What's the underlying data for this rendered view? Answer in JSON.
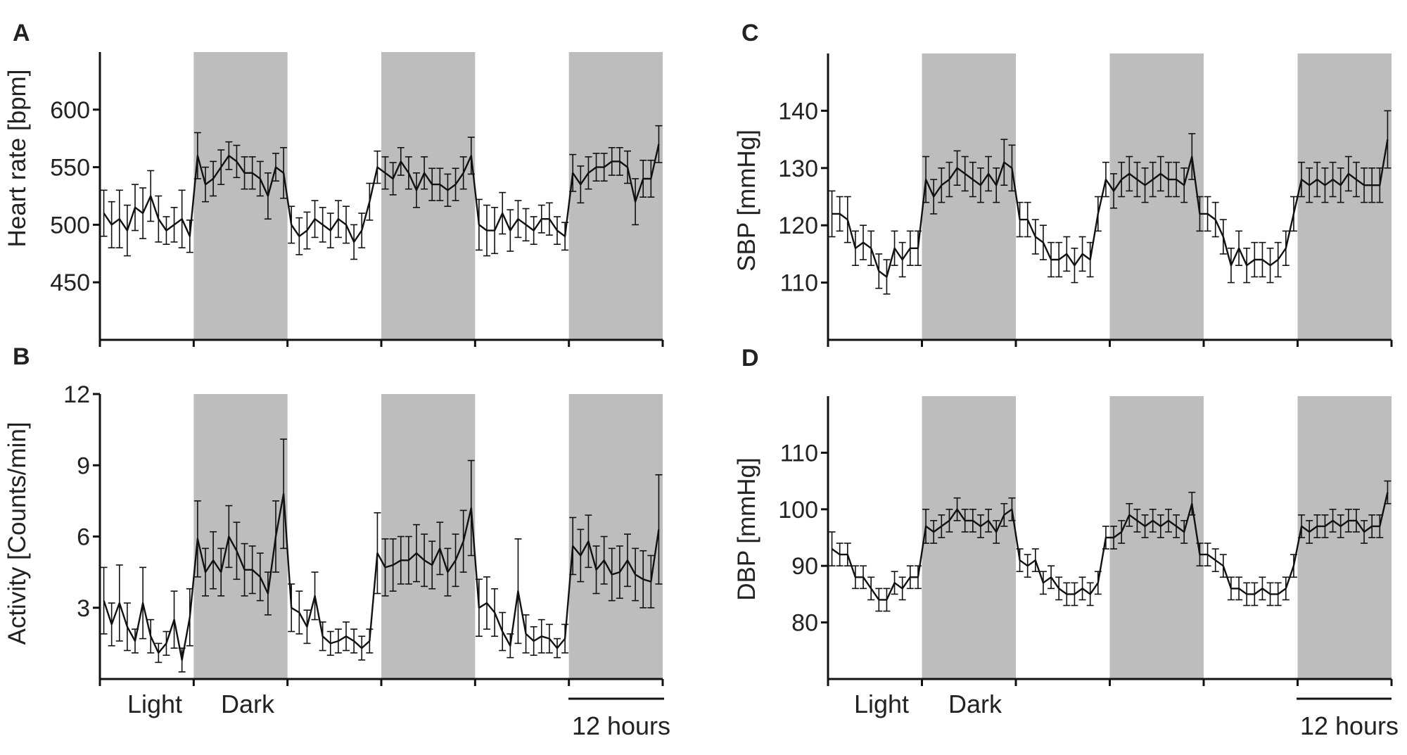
{
  "figure": {
    "colors": {
      "dark_band": "#bdbdbd",
      "line": "#111111",
      "axis": "#111111",
      "text": "#222222"
    },
    "footer_left": {
      "light_label": "Light",
      "dark_label": "Dark",
      "scale_label": "12 hours"
    },
    "footer_right": {
      "light_label": "Light",
      "dark_label": "Dark",
      "scale_label": "12 hours"
    }
  },
  "chart_data": [
    {
      "panel": "A",
      "type": "line",
      "title": "",
      "ylabel": "Heart rate [bpm]",
      "xlabel": "",
      "ylim": [
        400,
        650
      ],
      "yticks": [
        450,
        500,
        550,
        600
      ],
      "xlim": [
        0,
        72
      ],
      "dark_periods": [
        [
          12,
          24
        ],
        [
          36,
          48
        ],
        [
          60,
          72
        ]
      ],
      "series": [
        {
          "name": "Heart rate",
          "x": [
            0.5,
            1.5,
            2.5,
            3.5,
            4.5,
            5.5,
            6.5,
            7.5,
            8.5,
            9.5,
            10.5,
            11.5,
            12.5,
            13.5,
            14.5,
            15.5,
            16.5,
            17.5,
            18.5,
            19.5,
            20.5,
            21.5,
            22.5,
            23.5,
            24.5,
            25.5,
            26.5,
            27.5,
            28.5,
            29.5,
            30.5,
            31.5,
            32.5,
            33.5,
            34.5,
            35.5,
            36.5,
            37.5,
            38.5,
            39.5,
            40.5,
            41.5,
            42.5,
            43.5,
            44.5,
            45.5,
            46.5,
            47.5,
            48.5,
            49.5,
            50.5,
            51.5,
            52.5,
            53.5,
            54.5,
            55.5,
            56.5,
            57.5,
            58.5,
            59.5,
            60.5,
            61.5,
            62.5,
            63.5,
            64.5,
            65.5,
            66.5,
            67.5,
            68.5,
            69.5,
            70.5,
            71.5
          ],
          "values": [
            510,
            500,
            505,
            495,
            515,
            510,
            525,
            505,
            495,
            500,
            505,
            490,
            560,
            535,
            540,
            550,
            560,
            555,
            545,
            545,
            540,
            525,
            550,
            545,
            500,
            490,
            495,
            505,
            500,
            495,
            505,
            500,
            485,
            495,
            520,
            550,
            545,
            540,
            555,
            545,
            530,
            545,
            535,
            535,
            530,
            535,
            545,
            560,
            500,
            495,
            495,
            510,
            495,
            505,
            500,
            495,
            505,
            505,
            495,
            490,
            545,
            535,
            545,
            550,
            550,
            555,
            555,
            550,
            520,
            540,
            540,
            570
          ],
          "errors": [
            20,
            20,
            25,
            22,
            20,
            22,
            22,
            20,
            12,
            15,
            25,
            14,
            20,
            15,
            15,
            15,
            12,
            14,
            14,
            14,
            15,
            20,
            12,
            22,
            16,
            16,
            16,
            16,
            15,
            15,
            16,
            16,
            15,
            15,
            16,
            14,
            14,
            14,
            12,
            14,
            15,
            14,
            14,
            14,
            14,
            14,
            14,
            16,
            22,
            22,
            20,
            18,
            18,
            16,
            14,
            12,
            12,
            14,
            12,
            12,
            16,
            16,
            14,
            12,
            12,
            12,
            12,
            14,
            20,
            16,
            16,
            16
          ]
        }
      ]
    },
    {
      "panel": "B",
      "type": "line",
      "title": "",
      "ylabel": "Activity [Counts/min]",
      "xlabel": "",
      "ylim": [
        0,
        12
      ],
      "yticks": [
        3,
        6,
        9,
        12
      ],
      "xlim": [
        0,
        72
      ],
      "dark_periods": [
        [
          12,
          24
        ],
        [
          36,
          48
        ],
        [
          60,
          72
        ]
      ],
      "series": [
        {
          "name": "Activity",
          "x": [
            0.5,
            1.5,
            2.5,
            3.5,
            4.5,
            5.5,
            6.5,
            7.5,
            8.5,
            9.5,
            10.5,
            11.5,
            12.5,
            13.5,
            14.5,
            15.5,
            16.5,
            17.5,
            18.5,
            19.5,
            20.5,
            21.5,
            22.5,
            23.5,
            24.5,
            25.5,
            26.5,
            27.5,
            28.5,
            29.5,
            30.5,
            31.5,
            32.5,
            33.5,
            34.5,
            35.5,
            36.5,
            37.5,
            38.5,
            39.5,
            40.5,
            41.5,
            42.5,
            43.5,
            44.5,
            45.5,
            46.5,
            47.5,
            48.5,
            49.5,
            50.5,
            51.5,
            52.5,
            53.5,
            54.5,
            55.5,
            56.5,
            57.5,
            58.5,
            59.5,
            60.5,
            61.5,
            62.5,
            63.5,
            64.5,
            65.5,
            66.5,
            67.5,
            68.5,
            69.5,
            70.5,
            71.5
          ],
          "values": [
            3.3,
            2.3,
            3.2,
            2.2,
            1.6,
            3.2,
            1.8,
            1.1,
            1.5,
            2.5,
            0.8,
            2.6,
            5.9,
            4.5,
            5.0,
            4.5,
            6.0,
            5.4,
            4.6,
            4.6,
            4.3,
            3.6,
            6.0,
            7.8,
            3.0,
            2.8,
            2.2,
            3.5,
            1.8,
            1.5,
            1.6,
            1.8,
            1.6,
            1.3,
            1.6,
            5.3,
            4.7,
            4.8,
            5.0,
            5.0,
            5.3,
            5.0,
            4.8,
            5.5,
            4.5,
            5.0,
            5.8,
            7.2,
            3.0,
            3.2,
            2.8,
            2.0,
            1.4,
            3.7,
            1.9,
            1.6,
            1.8,
            1.7,
            1.3,
            1.7,
            5.6,
            5.2,
            5.8,
            4.6,
            5.0,
            4.4,
            4.5,
            5.0,
            4.4,
            4.2,
            4.1,
            6.3
          ],
          "errors": [
            1.4,
            0.9,
            1.6,
            1.0,
            0.5,
            1.5,
            0.7,
            0.4,
            0.5,
            1.2,
            0.5,
            1.2,
            1.6,
            1.0,
            1.2,
            1.0,
            1.3,
            1.2,
            1.1,
            1.0,
            1.0,
            0.9,
            1.5,
            2.3,
            1.0,
            0.9,
            0.7,
            1.0,
            0.6,
            0.5,
            0.5,
            0.6,
            0.5,
            0.5,
            0.5,
            1.7,
            1.2,
            1.1,
            1.0,
            1.0,
            1.2,
            1.1,
            1.0,
            1.1,
            1.0,
            1.1,
            1.3,
            2.0,
            1.2,
            1.1,
            1.0,
            0.8,
            0.5,
            2.2,
            0.8,
            0.6,
            0.7,
            0.6,
            0.4,
            0.6,
            1.2,
            1.1,
            1.1,
            1.0,
            1.0,
            1.1,
            1.1,
            1.1,
            1.1,
            1.2,
            1.1,
            2.3
          ]
        }
      ]
    },
    {
      "panel": "C",
      "type": "line",
      "title": "",
      "ylabel": "SBP [mmHg]",
      "xlabel": "",
      "ylim": [
        100,
        150
      ],
      "yticks": [
        110,
        120,
        130,
        140
      ],
      "xlim": [
        0,
        72
      ],
      "dark_periods": [
        [
          12,
          24
        ],
        [
          36,
          48
        ],
        [
          60,
          72
        ]
      ],
      "series": [
        {
          "name": "SBP",
          "x": [
            0.5,
            1.5,
            2.5,
            3.5,
            4.5,
            5.5,
            6.5,
            7.5,
            8.5,
            9.5,
            10.5,
            11.5,
            12.5,
            13.5,
            14.5,
            15.5,
            16.5,
            17.5,
            18.5,
            19.5,
            20.5,
            21.5,
            22.5,
            23.5,
            24.5,
            25.5,
            26.5,
            27.5,
            28.5,
            29.5,
            30.5,
            31.5,
            32.5,
            33.5,
            34.5,
            35.5,
            36.5,
            37.5,
            38.5,
            39.5,
            40.5,
            41.5,
            42.5,
            43.5,
            44.5,
            45.5,
            46.5,
            47.5,
            48.5,
            49.5,
            50.5,
            51.5,
            52.5,
            53.5,
            54.5,
            55.5,
            56.5,
            57.5,
            58.5,
            59.5,
            60.5,
            61.5,
            62.5,
            63.5,
            64.5,
            65.5,
            66.5,
            67.5,
            68.5,
            69.5,
            70.5,
            71.5
          ],
          "values": [
            122,
            122,
            121,
            116,
            117,
            116,
            112,
            111,
            116,
            114,
            116,
            116,
            128,
            125,
            127,
            128,
            130,
            129,
            128,
            127,
            129,
            127,
            131,
            130,
            121,
            121,
            118,
            117,
            114,
            114,
            115,
            113,
            115,
            114,
            122,
            128,
            126,
            128,
            129,
            128,
            127,
            128,
            129,
            128,
            128,
            127,
            132,
            122,
            122,
            121,
            118,
            113,
            116,
            113,
            114,
            114,
            113,
            114,
            116,
            122,
            128,
            127,
            128,
            127,
            128,
            127,
            129,
            128,
            127,
            127,
            127,
            135
          ],
          "errors": [
            4,
            3,
            4,
            3,
            3,
            3,
            3,
            3,
            3,
            3,
            3,
            3,
            4,
            3,
            3,
            3,
            3,
            3,
            3,
            3,
            3,
            3,
            4,
            4,
            3,
            3,
            3,
            3,
            3,
            3,
            3,
            3,
            3,
            3,
            3,
            3,
            3,
            3,
            3,
            3,
            3,
            3,
            3,
            3,
            3,
            3,
            4,
            3,
            3,
            3,
            3,
            3,
            3,
            3,
            3,
            3,
            3,
            3,
            3,
            3,
            3,
            3,
            3,
            3,
            3,
            3,
            3,
            3,
            3,
            3,
            3,
            5
          ]
        }
      ]
    },
    {
      "panel": "D",
      "type": "line",
      "title": "",
      "ylabel": "DBP [mmHg]",
      "xlabel": "",
      "ylim": [
        70,
        120
      ],
      "yticks": [
        80,
        90,
        100,
        110
      ],
      "xlim": [
        0,
        72
      ],
      "dark_periods": [
        [
          12,
          24
        ],
        [
          36,
          48
        ],
        [
          60,
          72
        ]
      ],
      "series": [
        {
          "name": "DBP",
          "x": [
            0.5,
            1.5,
            2.5,
            3.5,
            4.5,
            5.5,
            6.5,
            7.5,
            8.5,
            9.5,
            10.5,
            11.5,
            12.5,
            13.5,
            14.5,
            15.5,
            16.5,
            17.5,
            18.5,
            19.5,
            20.5,
            21.5,
            22.5,
            23.5,
            24.5,
            25.5,
            26.5,
            27.5,
            28.5,
            29.5,
            30.5,
            31.5,
            32.5,
            33.5,
            34.5,
            35.5,
            36.5,
            37.5,
            38.5,
            39.5,
            40.5,
            41.5,
            42.5,
            43.5,
            44.5,
            45.5,
            46.5,
            47.5,
            48.5,
            49.5,
            50.5,
            51.5,
            52.5,
            53.5,
            54.5,
            55.5,
            56.5,
            57.5,
            58.5,
            59.5,
            60.5,
            61.5,
            62.5,
            63.5,
            64.5,
            65.5,
            66.5,
            67.5,
            68.5,
            69.5,
            70.5,
            71.5
          ],
          "values": [
            93,
            92,
            92,
            88,
            88,
            86,
            84,
            84,
            87,
            86,
            88,
            88,
            97,
            96,
            97,
            98,
            100,
            98,
            98,
            97,
            98,
            96,
            99,
            100,
            91,
            90,
            91,
            87,
            88,
            86,
            85,
            85,
            86,
            85,
            87,
            95,
            95,
            96,
            99,
            98,
            97,
            98,
            97,
            98,
            97,
            96,
            101,
            92,
            92,
            91,
            90,
            86,
            86,
            85,
            85,
            86,
            85,
            85,
            86,
            90,
            97,
            96,
            97,
            97,
            98,
            97,
            98,
            98,
            96,
            97,
            97,
            103
          ],
          "errors": [
            3,
            2,
            2,
            2,
            2,
            2,
            2,
            2,
            2,
            2,
            2,
            2,
            3,
            2,
            2,
            2,
            2,
            2,
            2,
            2,
            2,
            2,
            2,
            2,
            2,
            2,
            2,
            2,
            2,
            2,
            2,
            2,
            2,
            2,
            2,
            2,
            2,
            2,
            2,
            2,
            2,
            2,
            2,
            2,
            2,
            2,
            2,
            2,
            2,
            2,
            2,
            2,
            2,
            2,
            2,
            2,
            2,
            2,
            2,
            2,
            2,
            2,
            2,
            2,
            2,
            2,
            2,
            2,
            2,
            2,
            2,
            2
          ]
        }
      ]
    }
  ]
}
